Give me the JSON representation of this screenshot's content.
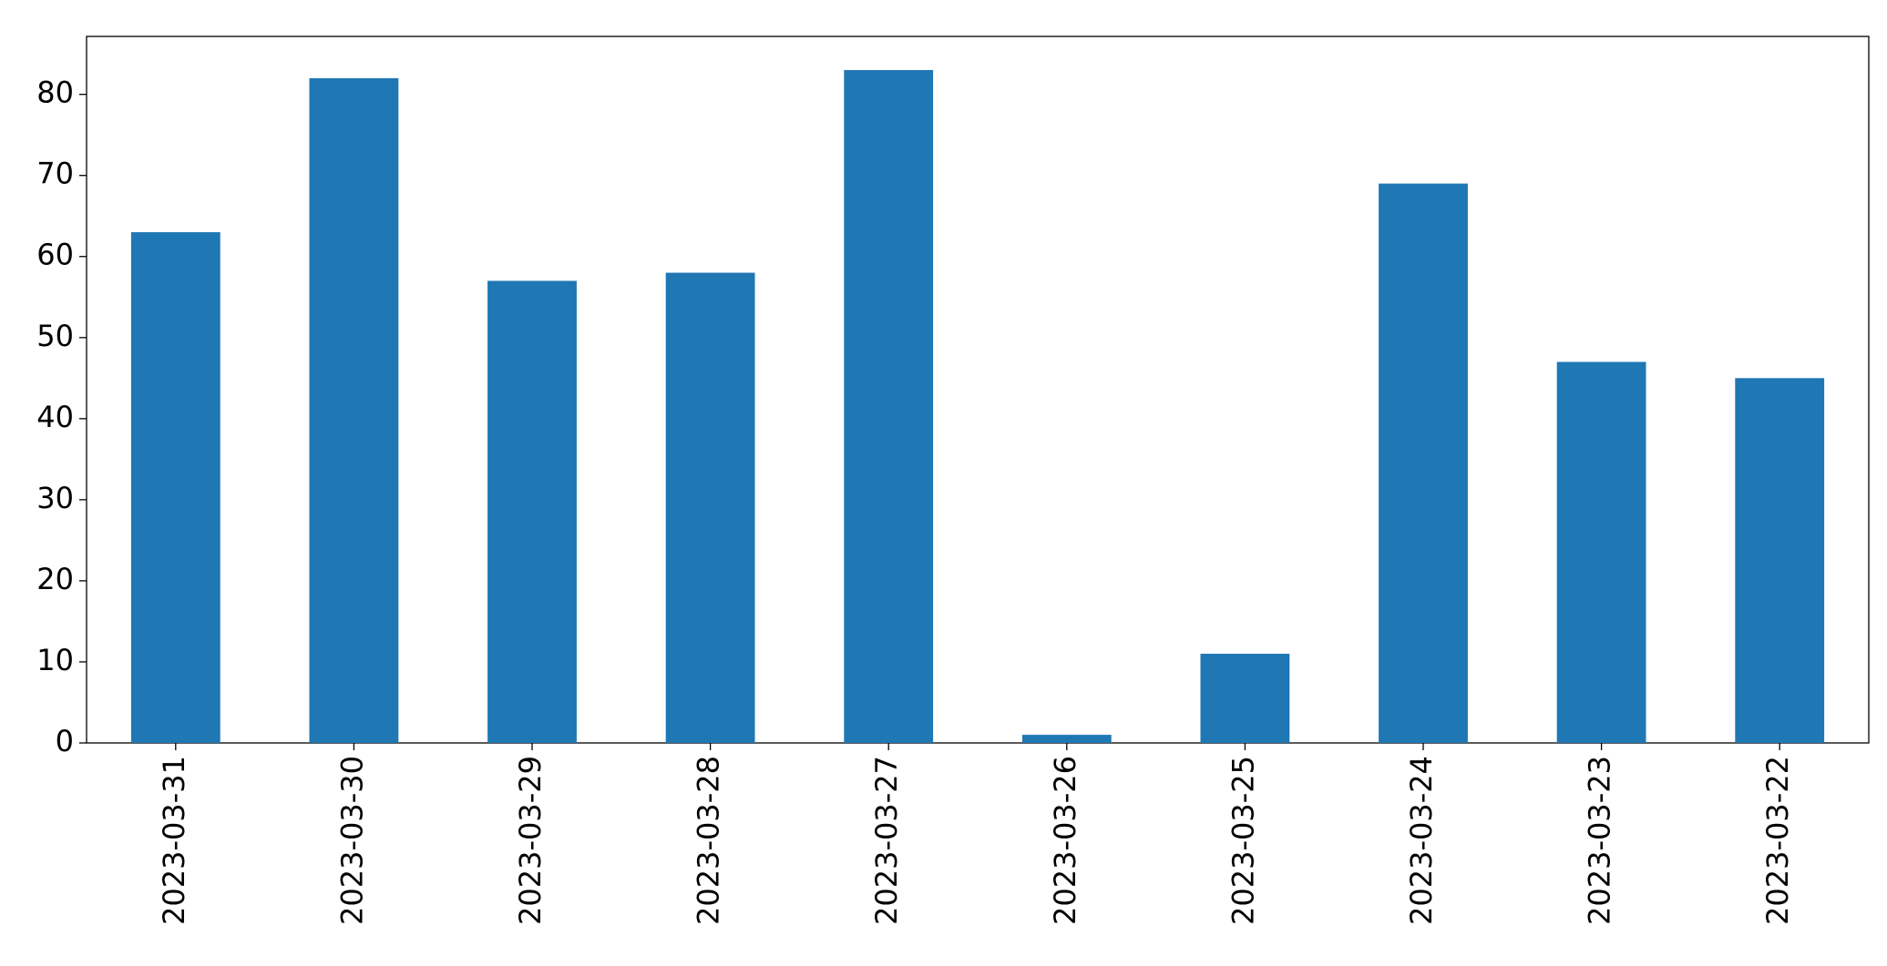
{
  "chart_data": {
    "type": "bar",
    "categories": [
      "2023-03-31",
      "2023-03-30",
      "2023-03-29",
      "2023-03-28",
      "2023-03-27",
      "2023-03-26",
      "2023-03-25",
      "2023-03-24",
      "2023-03-23",
      "2023-03-22"
    ],
    "values": [
      63,
      82,
      57,
      58,
      83,
      1,
      11,
      69,
      47,
      45
    ],
    "color": "#1f77b4",
    "ylim": [
      0,
      87.15
    ],
    "yticks": [
      0,
      10,
      20,
      30,
      40,
      50,
      60,
      70,
      80
    ],
    "grid": false
  }
}
